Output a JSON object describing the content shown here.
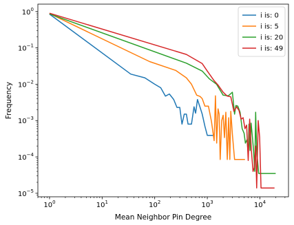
{
  "chart_data": {
    "type": "line",
    "xlabel": "Mean Neighbor Pin Degree",
    "ylabel": "Frequency",
    "xscale": "log",
    "yscale": "log",
    "xlim": [
      0.6,
      35000
    ],
    "ylim": [
      8e-06,
      1.6
    ],
    "xticks": [
      {
        "value": 1,
        "base": "10",
        "exp": "0"
      },
      {
        "value": 10,
        "base": "10",
        "exp": "1"
      },
      {
        "value": 100,
        "base": "10",
        "exp": "2"
      },
      {
        "value": 1000,
        "base": "10",
        "exp": "3"
      },
      {
        "value": 10000,
        "base": "10",
        "exp": "4"
      }
    ],
    "yticks": [
      {
        "value": 1e-05,
        "base": "10",
        "exp": "−5"
      },
      {
        "value": 0.0001,
        "base": "10",
        "exp": "−4"
      },
      {
        "value": 0.001,
        "base": "10",
        "exp": "−3"
      },
      {
        "value": 0.01,
        "base": "10",
        "exp": "−2"
      },
      {
        "value": 0.1,
        "base": "10",
        "exp": "−1"
      },
      {
        "value": 1,
        "base": "10",
        "exp": "0"
      }
    ],
    "legend_position": "top-right",
    "grid": false,
    "series": [
      {
        "name": "i is: 0",
        "color": "#1f77b4",
        "points": [
          [
            1,
            0.85
          ],
          [
            35,
            0.019
          ],
          [
            65,
            0.015
          ],
          [
            100,
            0.01
          ],
          [
            130,
            0.008
          ],
          [
            160,
            0.0047
          ],
          [
            190,
            0.0054
          ],
          [
            230,
            0.0038
          ],
          [
            265,
            0.0023
          ],
          [
            300,
            0.0023
          ],
          [
            330,
            0.0008
          ],
          [
            365,
            0.0015
          ],
          [
            400,
            0.0015
          ],
          [
            430,
            0.0008
          ],
          [
            500,
            0.0008
          ],
          [
            560,
            0.0024
          ],
          [
            600,
            0.0016
          ],
          [
            650,
            0.0038
          ],
          [
            730,
            0.0023
          ],
          [
            800,
            0.0015
          ],
          [
            900,
            0.0007
          ],
          [
            1000,
            0.00039
          ],
          [
            1200,
            0.00039
          ],
          [
            1350,
            0.00039
          ]
        ]
      },
      {
        "name": "i is: 5",
        "color": "#ff7f0e",
        "points": [
          [
            1,
            0.88
          ],
          [
            80,
            0.042
          ],
          [
            250,
            0.024
          ],
          [
            400,
            0.015
          ],
          [
            500,
            0.01
          ],
          [
            630,
            0.005
          ],
          [
            730,
            0.0046
          ],
          [
            800,
            0.004
          ],
          [
            900,
            0.0025
          ],
          [
            1050,
            0.0025
          ],
          [
            1200,
            0.00095
          ],
          [
            1350,
            0.00028
          ],
          [
            1430,
            0.0048
          ],
          [
            1510,
            0.00024
          ],
          [
            1600,
            0.0021
          ],
          [
            1680,
            0.0015
          ],
          [
            1760,
            8.5e-05
          ],
          [
            1880,
            0.001
          ],
          [
            2000,
            0.0014
          ],
          [
            2120,
            0.00034
          ],
          [
            2250,
            0.0017
          ],
          [
            2400,
            8.5e-05
          ],
          [
            2550,
            0.0012
          ],
          [
            2680,
            8.5e-05
          ],
          [
            2800,
            0.0018
          ],
          [
            3000,
            0.00042
          ],
          [
            3300,
            8.5e-05
          ],
          [
            3700,
            8.5e-05
          ],
          [
            4500,
            8.5e-05
          ],
          [
            5200,
            8.5e-05
          ]
        ]
      },
      {
        "name": "i is: 20",
        "color": "#2ca02c",
        "points": [
          [
            1,
            0.86
          ],
          [
            400,
            0.038
          ],
          [
            800,
            0.023
          ],
          [
            1100,
            0.014
          ],
          [
            1500,
            0.01
          ],
          [
            2000,
            0.005
          ],
          [
            2500,
            0.0048
          ],
          [
            3000,
            0.006
          ],
          [
            3300,
            0.0015
          ],
          [
            3500,
            0.0026
          ],
          [
            3800,
            0.0025
          ],
          [
            4200,
            0.0017
          ],
          [
            4600,
            0.0006
          ],
          [
            5000,
            0.00045
          ],
          [
            5300,
            0.00024
          ],
          [
            5700,
            0.0003
          ],
          [
            6000,
            0.00012
          ],
          [
            6200,
            0.0008
          ],
          [
            6500,
            0.00015
          ],
          [
            6800,
            0.00085
          ],
          [
            7200,
            0.00035
          ],
          [
            7600,
            0.00015
          ],
          [
            8000,
            4e-05
          ],
          [
            8300,
            0.0017
          ],
          [
            8700,
            0.00015
          ],
          [
            9500,
            3.5e-05
          ],
          [
            12000,
            3.5e-05
          ],
          [
            16000,
            3.5e-05
          ],
          [
            20000,
            3.5e-05
          ]
        ]
      },
      {
        "name": "i is: 49",
        "color": "#d62728",
        "points": [
          [
            1,
            0.9
          ],
          [
            400,
            0.066
          ],
          [
            800,
            0.037
          ],
          [
            1000,
            0.023
          ],
          [
            1350,
            0.0125
          ],
          [
            1600,
            0.0095
          ],
          [
            2000,
            0.006
          ],
          [
            2400,
            0.0047
          ],
          [
            2800,
            0.0045
          ],
          [
            3200,
            0.0018
          ],
          [
            3600,
            0.0024
          ],
          [
            4000,
            0.0019
          ],
          [
            4400,
            0.0011
          ],
          [
            4800,
            0.0012
          ],
          [
            5200,
            0.0006
          ],
          [
            5600,
            0.00075
          ],
          [
            6000,
            8e-05
          ],
          [
            6400,
            0.0011
          ],
          [
            6900,
            0.00015
          ],
          [
            7400,
            4e-05
          ],
          [
            7800,
            5e-05
          ],
          [
            8300,
            0.0002
          ],
          [
            8700,
            1.4e-05
          ],
          [
            9300,
            0.001
          ],
          [
            9900,
            0.00035
          ],
          [
            10500,
            1.4e-05
          ],
          [
            12500,
            1.4e-05
          ],
          [
            16000,
            1.4e-05
          ],
          [
            19000,
            1.4e-05
          ]
        ]
      }
    ]
  }
}
